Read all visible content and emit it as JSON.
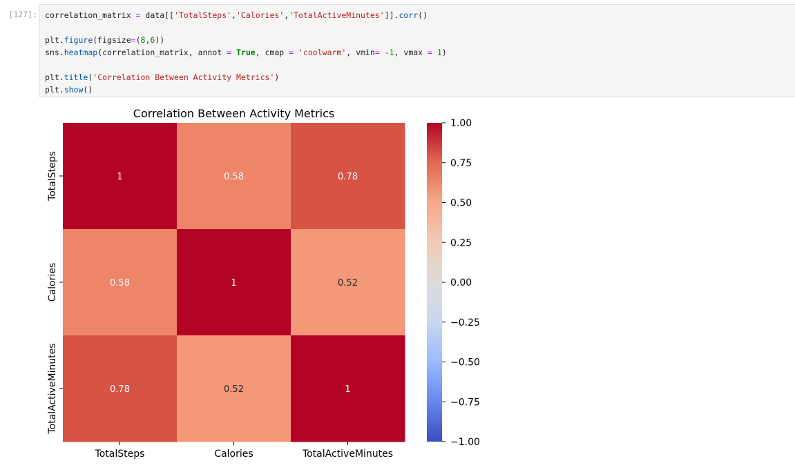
{
  "cell": {
    "prompt": "[127]:",
    "code_lines": [
      [
        {
          "t": "correlation_matrix "
        },
        {
          "t": "=",
          "c": "op"
        },
        {
          "t": " data[["
        },
        {
          "t": "'TotalSteps'",
          "c": "str"
        },
        {
          "t": ","
        },
        {
          "t": "'Calories'",
          "c": "str"
        },
        {
          "t": ","
        },
        {
          "t": "'TotalActiveMinutes'",
          "c": "str"
        },
        {
          "t": "]]."
        },
        {
          "t": "corr",
          "c": "fn"
        },
        {
          "t": "()"
        }
      ],
      [],
      [
        {
          "t": "plt."
        },
        {
          "t": "figure",
          "c": "fn"
        },
        {
          "t": "(figsize"
        },
        {
          "t": "=",
          "c": "op"
        },
        {
          "t": "("
        },
        {
          "t": "8",
          "c": "num"
        },
        {
          "t": ","
        },
        {
          "t": "6",
          "c": "num"
        },
        {
          "t": "))"
        }
      ],
      [
        {
          "t": "sns."
        },
        {
          "t": "heatmap",
          "c": "fn"
        },
        {
          "t": "(correlation_matrix, annot "
        },
        {
          "t": "=",
          "c": "op"
        },
        {
          "t": " "
        },
        {
          "t": "True",
          "c": "kw"
        },
        {
          "t": ", cmap "
        },
        {
          "t": "=",
          "c": "op"
        },
        {
          "t": " "
        },
        {
          "t": "'coolwarm'",
          "c": "str"
        },
        {
          "t": ", vmin"
        },
        {
          "t": "=",
          "c": "op"
        },
        {
          "t": " "
        },
        {
          "t": "-1",
          "c": "num"
        },
        {
          "t": ", vmax "
        },
        {
          "t": "=",
          "c": "op"
        },
        {
          "t": " "
        },
        {
          "t": "1",
          "c": "num"
        },
        {
          "t": ")"
        }
      ],
      [],
      [
        {
          "t": "plt."
        },
        {
          "t": "title",
          "c": "fn"
        },
        {
          "t": "("
        },
        {
          "t": "'Correlation Between Activity Metrics'",
          "c": "str"
        },
        {
          "t": ")"
        }
      ],
      [
        {
          "t": "plt."
        },
        {
          "t": "show",
          "c": "fn"
        },
        {
          "t": "()"
        }
      ]
    ]
  },
  "chart_data": {
    "type": "heatmap",
    "title": "Correlation Between Activity Metrics",
    "x_labels": [
      "TotalSteps",
      "Calories",
      "TotalActiveMinutes"
    ],
    "y_labels": [
      "TotalSteps",
      "Calories",
      "TotalActiveMinutes"
    ],
    "values": [
      [
        1,
        0.58,
        0.78
      ],
      [
        0.58,
        1,
        0.52
      ],
      [
        0.78,
        0.52,
        1
      ]
    ],
    "annotations": [
      [
        "1",
        "0.58",
        "0.78"
      ],
      [
        "0.58",
        "1",
        "0.52"
      ],
      [
        "0.78",
        "0.52",
        "1"
      ]
    ],
    "colormap": "coolwarm",
    "vmin": -1,
    "vmax": 1,
    "colorbar_ticks": [
      1,
      0.75,
      0.5,
      0.25,
      0,
      -0.25,
      -0.5,
      -0.75,
      -1
    ],
    "colorbar_tick_labels": [
      "1.00",
      "0.75",
      "0.50",
      "0.25",
      "0.00",
      "−0.25",
      "−0.50",
      "−0.75",
      "−1.00"
    ],
    "cell_colors": {
      "1": "#b40426",
      "0.78": "#d75445",
      "0.58": "#ee8468",
      "0.52": "#f4987a"
    },
    "colorbar_colors": [
      "#3b4cc0",
      "#6788ee",
      "#9abbff",
      "#c9d7f0",
      "#dddcdc",
      "#f2cbb7",
      "#f7a889",
      "#e26952",
      "#b40426"
    ]
  }
}
